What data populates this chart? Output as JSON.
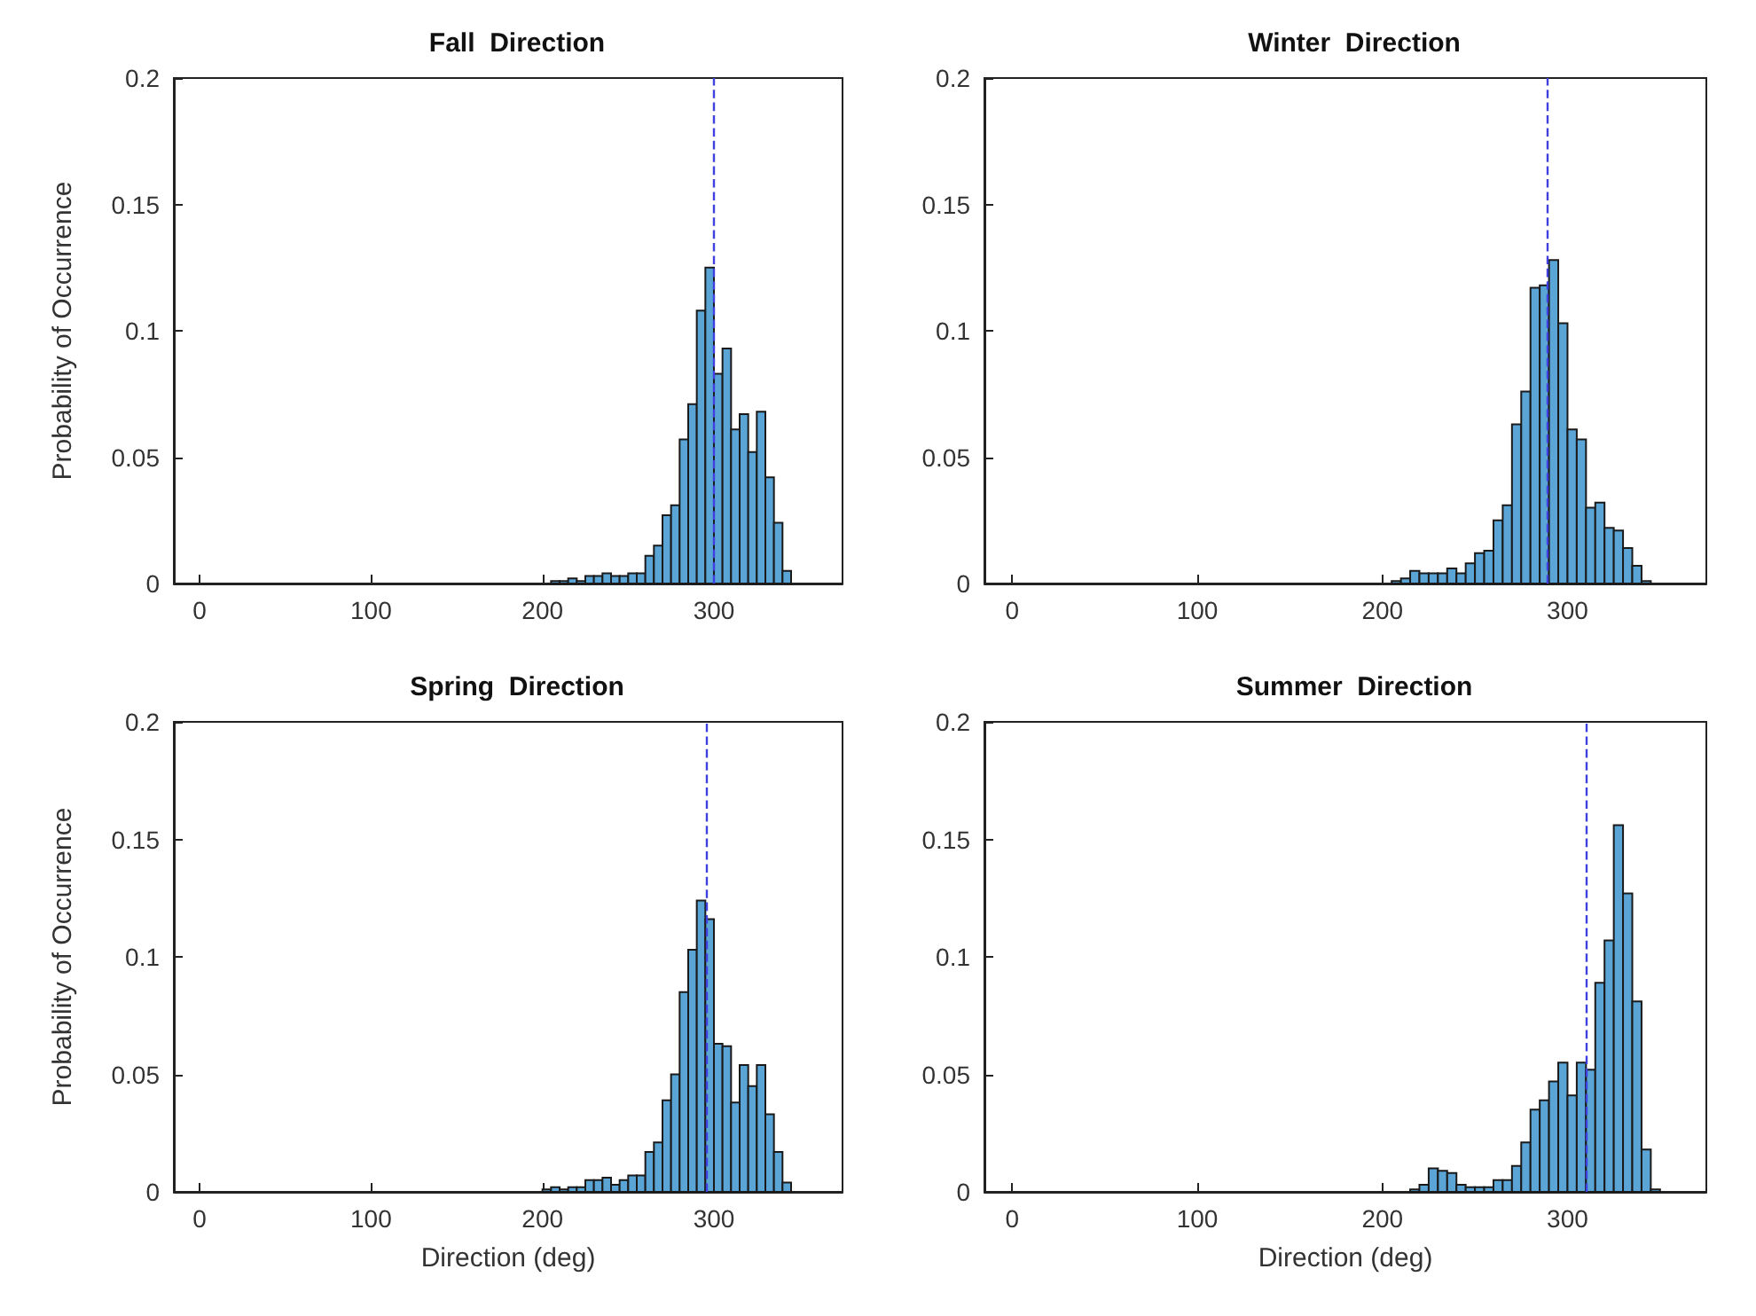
{
  "chart_data": [
    {
      "type": "histogram",
      "title": "Fall  Direction",
      "ylabel": "Probability of Occurrence",
      "color": "#5aa5d6",
      "xlim": [
        -15,
        375
      ],
      "xticks": [
        0,
        100,
        200,
        300
      ],
      "ylim": [
        0,
        0.2
      ],
      "yticks": [
        0,
        0.05,
        0.1,
        0.15,
        0.2
      ],
      "bins": [
        205,
        210,
        215,
        220,
        225,
        230,
        235,
        240,
        245,
        250,
        255,
        260,
        265,
        270,
        275,
        280,
        285,
        290,
        295,
        300,
        305,
        310,
        315,
        320,
        325,
        330,
        335,
        340,
        345
      ],
      "values": [
        0.001,
        0.001,
        0.002,
        0.001,
        0.003,
        0.003,
        0.004,
        0.003,
        0.003,
        0.004,
        0.004,
        0.011,
        0.015,
        0.027,
        0.031,
        0.057,
        0.071,
        0.108,
        0.125,
        0.083,
        0.093,
        0.061,
        0.067,
        0.052,
        0.068,
        0.042,
        0.024,
        0.005
      ],
      "ref_lines": [
        {
          "axis": "x",
          "value": 300,
          "color": "#4040e0",
          "line_style": "dashed"
        }
      ]
    },
    {
      "type": "histogram",
      "title": "Winter  Direction",
      "color": "#5aa5d6",
      "xlim": [
        -15,
        375
      ],
      "xticks": [
        0,
        100,
        200,
        300
      ],
      "ylim": [
        0,
        0.2
      ],
      "yticks": [
        0,
        0.05,
        0.1,
        0.15,
        0.2
      ],
      "bins": [
        205,
        210,
        215,
        220,
        225,
        230,
        235,
        240,
        245,
        250,
        255,
        260,
        265,
        270,
        275,
        280,
        285,
        290,
        295,
        300,
        305,
        310,
        315,
        320,
        325,
        330,
        335,
        340,
        345
      ],
      "values": [
        0.001,
        0.002,
        0.005,
        0.004,
        0.004,
        0.004,
        0.006,
        0.004,
        0.008,
        0.012,
        0.013,
        0.025,
        0.031,
        0.063,
        0.076,
        0.117,
        0.118,
        0.128,
        0.103,
        0.061,
        0.057,
        0.03,
        0.032,
        0.022,
        0.021,
        0.014,
        0.007,
        0.001
      ],
      "ref_lines": [
        {
          "axis": "x",
          "value": 289,
          "color": "#4040e0",
          "line_style": "dashed"
        }
      ]
    },
    {
      "type": "histogram",
      "title": "Spring  Direction",
      "ylabel": "Probability of Occurrence",
      "xlabel": "Direction (deg)",
      "color": "#5aa5d6",
      "xlim": [
        -15,
        375
      ],
      "xticks": [
        0,
        100,
        200,
        300
      ],
      "ylim": [
        0,
        0.2
      ],
      "yticks": [
        0,
        0.05,
        0.1,
        0.15,
        0.2
      ],
      "bins": [
        200,
        205,
        210,
        215,
        220,
        225,
        230,
        235,
        240,
        245,
        250,
        255,
        260,
        265,
        270,
        275,
        280,
        285,
        290,
        295,
        300,
        305,
        310,
        315,
        320,
        325,
        330,
        335,
        340,
        345
      ],
      "values": [
        0.001,
        0.002,
        0.001,
        0.002,
        0.002,
        0.005,
        0.005,
        0.006,
        0.003,
        0.005,
        0.007,
        0.007,
        0.017,
        0.021,
        0.039,
        0.05,
        0.085,
        0.103,
        0.124,
        0.116,
        0.063,
        0.062,
        0.038,
        0.054,
        0.045,
        0.054,
        0.033,
        0.017,
        0.004
      ],
      "ref_lines": [
        {
          "axis": "x",
          "value": 296,
          "color": "#4040e0",
          "line_style": "dashed"
        }
      ]
    },
    {
      "type": "histogram",
      "title": "Summer  Direction",
      "xlabel": "Direction (deg)",
      "color": "#5aa5d6",
      "xlim": [
        -15,
        375
      ],
      "xticks": [
        0,
        100,
        200,
        300
      ],
      "ylim": [
        0,
        0.2
      ],
      "yticks": [
        0,
        0.05,
        0.1,
        0.15,
        0.2
      ],
      "bins": [
        215,
        220,
        225,
        230,
        235,
        240,
        245,
        250,
        255,
        260,
        265,
        270,
        275,
        280,
        285,
        290,
        295,
        300,
        305,
        310,
        315,
        320,
        325,
        330,
        335,
        340,
        345,
        350
      ],
      "values": [
        0.001,
        0.003,
        0.01,
        0.009,
        0.008,
        0.003,
        0.002,
        0.002,
        0.002,
        0.005,
        0.005,
        0.011,
        0.021,
        0.035,
        0.039,
        0.047,
        0.055,
        0.041,
        0.055,
        0.052,
        0.089,
        0.107,
        0.156,
        0.127,
        0.081,
        0.018,
        0.001
      ],
      "ref_lines": [
        {
          "axis": "x",
          "value": 310,
          "color": "#4040e0",
          "line_style": "dashed"
        }
      ]
    }
  ]
}
